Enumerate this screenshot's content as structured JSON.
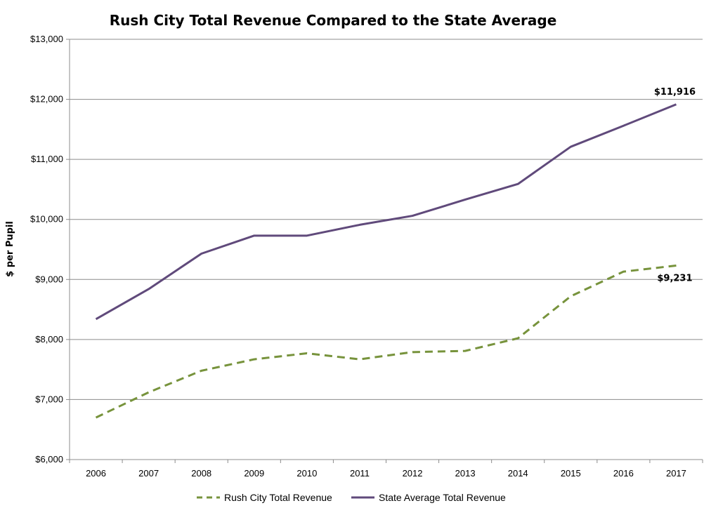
{
  "chart_data": {
    "type": "line",
    "title": "Rush City Total Revenue Compared to the State Average",
    "xlabel": "",
    "ylabel": "$ per Pupil",
    "categories": [
      "2006",
      "2007",
      "2008",
      "2009",
      "2010",
      "2011",
      "2012",
      "2013",
      "2014",
      "2015",
      "2016",
      "2017"
    ],
    "ylim": [
      6000,
      13000
    ],
    "y_ticks": [
      6000,
      7000,
      8000,
      9000,
      10000,
      11000,
      12000,
      13000
    ],
    "y_tick_labels": [
      "$6,000",
      "$7,000",
      "$8,000",
      "$9,000",
      "$10,000",
      "$11,000",
      "$12,000",
      "$13,000"
    ],
    "grid": true,
    "legend_position": "bottom",
    "series": [
      {
        "name": "Rush City Total Revenue",
        "color": "#77933c",
        "style": "dashed",
        "values": [
          6700,
          7120,
          7480,
          7670,
          7770,
          7670,
          7790,
          7810,
          8020,
          8720,
          9130,
          9231
        ],
        "end_label": "$9,231"
      },
      {
        "name": "State Average Total Revenue",
        "color": "#604a7b",
        "style": "solid",
        "values": [
          8340,
          8840,
          9430,
          9730,
          9730,
          9910,
          10060,
          10330,
          10590,
          11210,
          11560,
          11916
        ],
        "end_label": "$11,916"
      }
    ]
  }
}
